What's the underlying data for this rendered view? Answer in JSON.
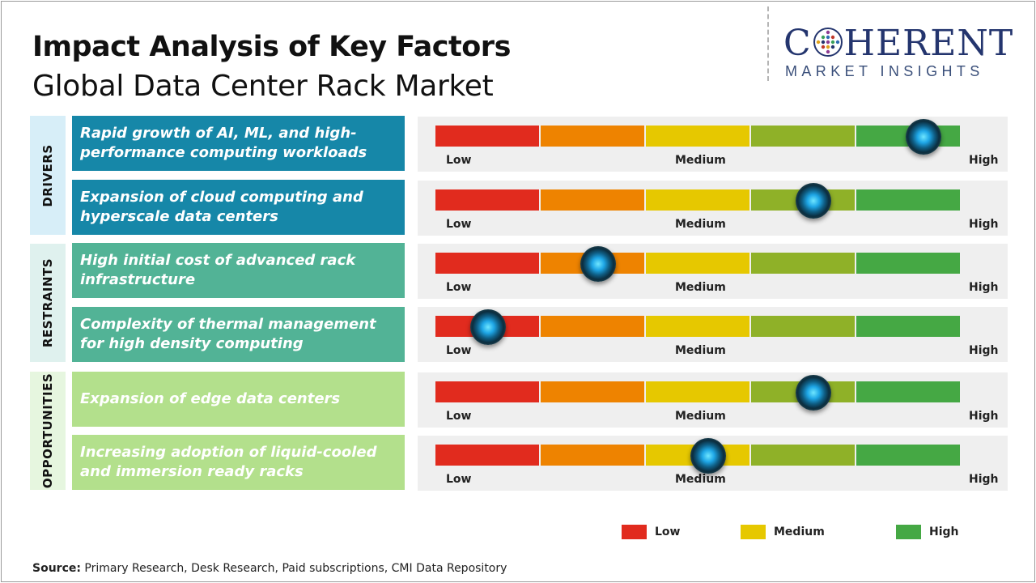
{
  "header": {
    "title": "Impact Analysis of Key Factors",
    "subtitle": "Global Data Center Rack Market"
  },
  "logo": {
    "main_pre": "C",
    "main_post": "HERENT",
    "sub": "MARKET INSIGHTS"
  },
  "groups": [
    {
      "label": "DRIVERS",
      "color": "#d7eef8"
    },
    {
      "label": "RESTRAINTS",
      "color": "#dff1ee"
    },
    {
      "label": "OPPORTUNITIES",
      "color": "#e6f6df"
    }
  ],
  "colors": {
    "low": "#e12b1e",
    "low_mid": "#ee8300",
    "medium": "#e6c800",
    "mid_high": "#8fb128",
    "high": "#45a844",
    "drivers_box": "#1687a8",
    "restraints_box": "#52b396",
    "opportunities_box": "#b3e08c"
  },
  "chart_data": {
    "type": "table",
    "scale": [
      "Low",
      "Medium",
      "High"
    ],
    "factors": [
      {
        "group": "DRIVERS",
        "text": "Rapid growth of AI, ML, and high-performance computing workloads",
        "impact": 0.93
      },
      {
        "group": "DRIVERS",
        "text": "Expansion of cloud computing and hyperscale data centers",
        "impact": 0.72
      },
      {
        "group": "RESTRAINTS",
        "text": "High initial cost of advanced rack infrastructure",
        "impact": 0.31
      },
      {
        "group": "RESTRAINTS",
        "text": "Complexity of thermal management for high density computing",
        "impact": 0.1
      },
      {
        "group": "OPPORTUNITIES",
        "text": "Expansion of edge data centers",
        "impact": 0.72
      },
      {
        "group": "OPPORTUNITIES",
        "text": "Increasing adoption of liquid-cooled and immersion ready racks",
        "impact": 0.52
      }
    ],
    "legend": [
      {
        "label": "Low",
        "color": "#e12b1e"
      },
      {
        "label": "Medium",
        "color": "#e6c800"
      },
      {
        "label": "High",
        "color": "#45a844"
      }
    ]
  },
  "source": {
    "label": "Source:",
    "text": " Primary Research, Desk Research, Paid subscriptions, CMI Data Repository"
  }
}
